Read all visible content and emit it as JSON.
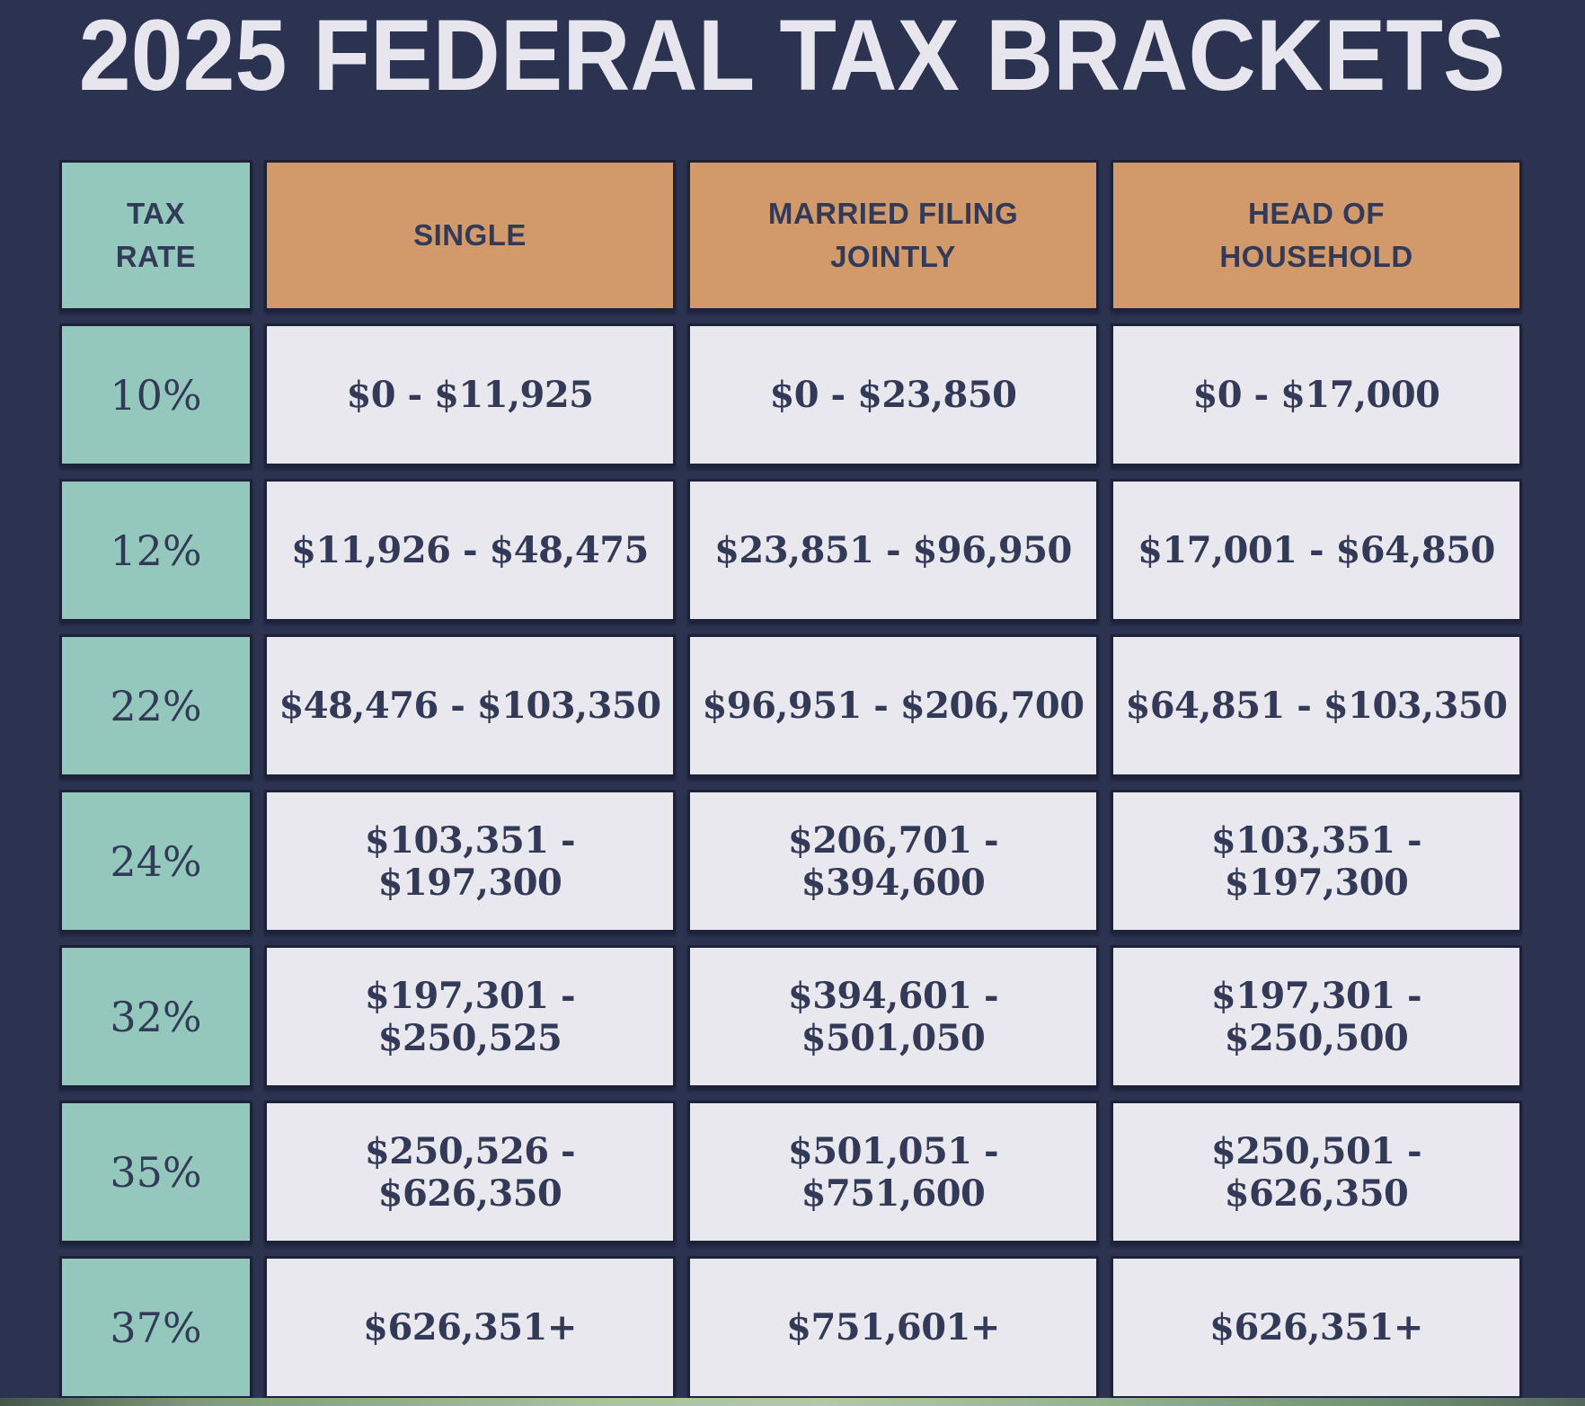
{
  "title": "2025 FEDERAL TAX BRACKETS",
  "chart_data": {
    "type": "table",
    "title": "2025 FEDERAL TAX BRACKETS",
    "columns": [
      "TAX RATE",
      "SINGLE",
      "MARRIED FILING JOINTLY",
      "HEAD OF HOUSEHOLD"
    ],
    "rows": [
      [
        "10%",
        "$0 - $11,925",
        "$0 - $23,850",
        "$0 - $17,000"
      ],
      [
        "12%",
        "$11,926 - $48,475",
        "$23,851 - $96,950",
        "$17,001 - $64,850"
      ],
      [
        "22%",
        "$48,476 - $103,350",
        "$96,951 - $206,700",
        "$64,851 - $103,350"
      ],
      [
        "24%",
        "$103,351 - $197,300",
        "$206,701 - $394,600",
        "$103,351 - $197,300"
      ],
      [
        "32%",
        "$197,301 - $250,525",
        "$394,601 - $501,050",
        "$197,301 - $250,500"
      ],
      [
        "35%",
        "$250,526 - $626,350",
        "$501,051 - $751,600",
        "$250,501 - $626,350"
      ],
      [
        "37%",
        "$626,351+",
        "$751,601+",
        "$626,351+"
      ]
    ]
  },
  "colors": {
    "background": "#2c3350",
    "rate_column": "#95c8bd",
    "header_row": "#d2996a",
    "data_cell": "#e9e8ef",
    "cell_border": "#1d2238",
    "cell_text": "#333a58",
    "title_text": "#e7e6ee"
  }
}
